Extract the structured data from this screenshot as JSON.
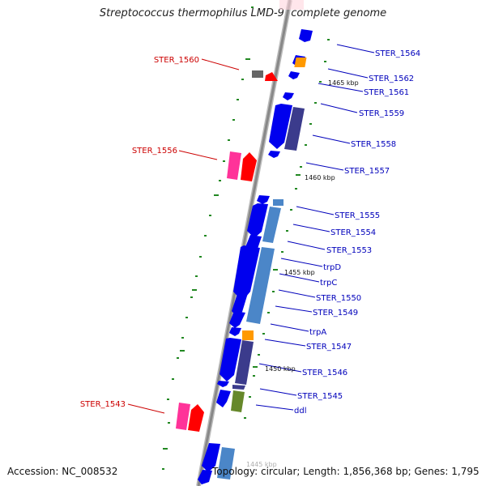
{
  "title": "Streptococcus thermophilus LMD-9, complete genome",
  "footer": {
    "accession": "Accession: NC_008532",
    "stats": "Topology: circular; Length: 1,856,368 bp; Genes: 1,795"
  },
  "colors": {
    "backbone": "#888888",
    "forward_label": "#0000bb",
    "reverse_label": "#cc0000",
    "tick": "#228822",
    "cds": "#0000ee",
    "cds_dark": "#3b3b8c",
    "cds_light": "#4b86c8",
    "orange": "#ff9900",
    "pink": "#ff3399",
    "red": "#ff0000",
    "olive": "#66882a"
  },
  "kbp_markers": [
    "1465 kbp",
    "1460 kbp",
    "1455 kbp",
    "1450 kbp",
    "1445 kbp"
  ],
  "forward_labels": [
    "STER_1564",
    "STER_1562",
    "STER_1561",
    "STER_1559",
    "STER_1558",
    "STER_1557",
    "STER_1555",
    "STER_1554",
    "STER_1553",
    "trpD",
    "trpC",
    "STER_1550",
    "STER_1549",
    "trpA",
    "STER_1547",
    "STER_1546",
    "STER_1545",
    "ddl"
  ],
  "reverse_labels": [
    "STER_1560",
    "STER_1556",
    "STER_1543"
  ]
}
